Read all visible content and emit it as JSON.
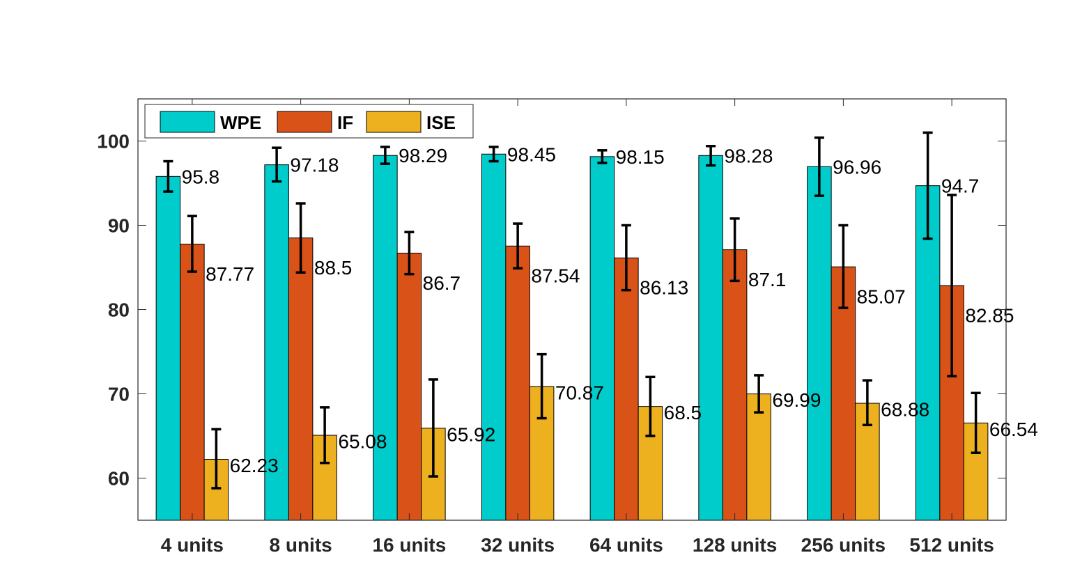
{
  "chart_data": {
    "type": "bar",
    "categories": [
      "4 units",
      "8 units",
      "16 units",
      "32 units",
      "64 units",
      "128 units",
      "256 units",
      "512 units"
    ],
    "series": [
      {
        "name": "WPE",
        "color": "#00CCCC",
        "values": [
          95.8,
          97.18,
          98.29,
          98.45,
          98.15,
          98.28,
          96.96,
          94.7
        ],
        "value_labels": [
          "95.8",
          "97.18",
          "98.29",
          "98.45",
          "98.15",
          "98.28",
          "96.96",
          "94.7"
        ],
        "error_low": [
          94.0,
          95.2,
          97.3,
          97.6,
          97.4,
          97.1,
          93.5,
          88.4
        ],
        "error_high": [
          97.6,
          99.2,
          99.3,
          99.3,
          98.9,
          99.4,
          100.4,
          101.0
        ]
      },
      {
        "name": "IF",
        "color": "#D95319",
        "values": [
          87.77,
          88.5,
          86.7,
          87.54,
          86.13,
          87.1,
          85.07,
          82.85
        ],
        "value_labels": [
          "87.77",
          "88.5",
          "86.7",
          "87.54",
          "86.13",
          "87.1",
          "85.07",
          "82.85"
        ],
        "error_low": [
          84.5,
          84.4,
          84.2,
          84.9,
          82.3,
          83.4,
          80.2,
          72.1
        ],
        "error_high": [
          91.1,
          92.6,
          89.2,
          90.2,
          90.0,
          90.8,
          90.0,
          93.6
        ]
      },
      {
        "name": "ISE",
        "color": "#EDB120",
        "values": [
          62.23,
          65.08,
          65.92,
          70.87,
          68.5,
          69.99,
          68.88,
          66.54
        ],
        "value_labels": [
          "62.23",
          "65.08",
          "65.92",
          "70.87",
          "68.5",
          "69.99",
          "68.88",
          "66.54"
        ],
        "error_low": [
          58.8,
          61.8,
          60.2,
          67.1,
          65.0,
          67.8,
          66.3,
          63.0
        ],
        "error_high": [
          65.8,
          68.4,
          71.7,
          74.7,
          72.0,
          72.2,
          71.6,
          70.1
        ]
      }
    ],
    "ylim": [
      55,
      105
    ],
    "yticks": [
      60,
      70,
      80,
      90,
      100
    ],
    "title": "",
    "xlabel": "",
    "ylabel": "",
    "legend_position": "top-left",
    "grid": false
  }
}
